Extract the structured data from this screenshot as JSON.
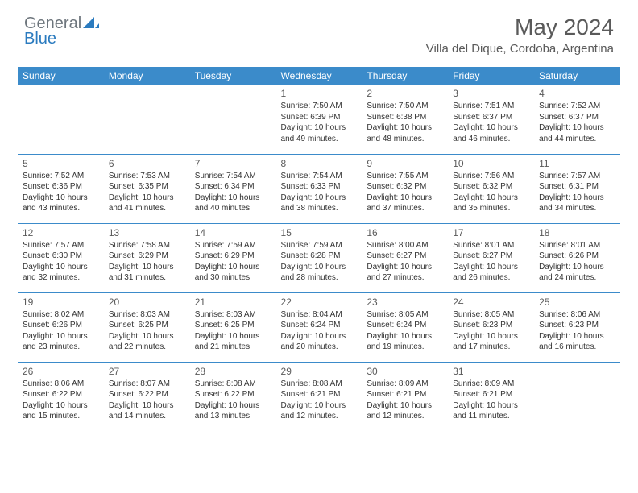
{
  "logo": {
    "word1": "General",
    "word2": "Blue"
  },
  "title": "May 2024",
  "location": "Villa del Dique, Cordoba, Argentina",
  "header_bg": "#3b8bca",
  "days_of_week": [
    "Sunday",
    "Monday",
    "Tuesday",
    "Wednesday",
    "Thursday",
    "Friday",
    "Saturday"
  ],
  "weeks": [
    [
      null,
      null,
      null,
      {
        "n": "1",
        "sr": "7:50 AM",
        "ss": "6:39 PM",
        "dl": "10 hours and 49 minutes."
      },
      {
        "n": "2",
        "sr": "7:50 AM",
        "ss": "6:38 PM",
        "dl": "10 hours and 48 minutes."
      },
      {
        "n": "3",
        "sr": "7:51 AM",
        "ss": "6:37 PM",
        "dl": "10 hours and 46 minutes."
      },
      {
        "n": "4",
        "sr": "7:52 AM",
        "ss": "6:37 PM",
        "dl": "10 hours and 44 minutes."
      }
    ],
    [
      {
        "n": "5",
        "sr": "7:52 AM",
        "ss": "6:36 PM",
        "dl": "10 hours and 43 minutes."
      },
      {
        "n": "6",
        "sr": "7:53 AM",
        "ss": "6:35 PM",
        "dl": "10 hours and 41 minutes."
      },
      {
        "n": "7",
        "sr": "7:54 AM",
        "ss": "6:34 PM",
        "dl": "10 hours and 40 minutes."
      },
      {
        "n": "8",
        "sr": "7:54 AM",
        "ss": "6:33 PM",
        "dl": "10 hours and 38 minutes."
      },
      {
        "n": "9",
        "sr": "7:55 AM",
        "ss": "6:32 PM",
        "dl": "10 hours and 37 minutes."
      },
      {
        "n": "10",
        "sr": "7:56 AM",
        "ss": "6:32 PM",
        "dl": "10 hours and 35 minutes."
      },
      {
        "n": "11",
        "sr": "7:57 AM",
        "ss": "6:31 PM",
        "dl": "10 hours and 34 minutes."
      }
    ],
    [
      {
        "n": "12",
        "sr": "7:57 AM",
        "ss": "6:30 PM",
        "dl": "10 hours and 32 minutes."
      },
      {
        "n": "13",
        "sr": "7:58 AM",
        "ss": "6:29 PM",
        "dl": "10 hours and 31 minutes."
      },
      {
        "n": "14",
        "sr": "7:59 AM",
        "ss": "6:29 PM",
        "dl": "10 hours and 30 minutes."
      },
      {
        "n": "15",
        "sr": "7:59 AM",
        "ss": "6:28 PM",
        "dl": "10 hours and 28 minutes."
      },
      {
        "n": "16",
        "sr": "8:00 AM",
        "ss": "6:27 PM",
        "dl": "10 hours and 27 minutes."
      },
      {
        "n": "17",
        "sr": "8:01 AM",
        "ss": "6:27 PM",
        "dl": "10 hours and 26 minutes."
      },
      {
        "n": "18",
        "sr": "8:01 AM",
        "ss": "6:26 PM",
        "dl": "10 hours and 24 minutes."
      }
    ],
    [
      {
        "n": "19",
        "sr": "8:02 AM",
        "ss": "6:26 PM",
        "dl": "10 hours and 23 minutes."
      },
      {
        "n": "20",
        "sr": "8:03 AM",
        "ss": "6:25 PM",
        "dl": "10 hours and 22 minutes."
      },
      {
        "n": "21",
        "sr": "8:03 AM",
        "ss": "6:25 PM",
        "dl": "10 hours and 21 minutes."
      },
      {
        "n": "22",
        "sr": "8:04 AM",
        "ss": "6:24 PM",
        "dl": "10 hours and 20 minutes."
      },
      {
        "n": "23",
        "sr": "8:05 AM",
        "ss": "6:24 PM",
        "dl": "10 hours and 19 minutes."
      },
      {
        "n": "24",
        "sr": "8:05 AM",
        "ss": "6:23 PM",
        "dl": "10 hours and 17 minutes."
      },
      {
        "n": "25",
        "sr": "8:06 AM",
        "ss": "6:23 PM",
        "dl": "10 hours and 16 minutes."
      }
    ],
    [
      {
        "n": "26",
        "sr": "8:06 AM",
        "ss": "6:22 PM",
        "dl": "10 hours and 15 minutes."
      },
      {
        "n": "27",
        "sr": "8:07 AM",
        "ss": "6:22 PM",
        "dl": "10 hours and 14 minutes."
      },
      {
        "n": "28",
        "sr": "8:08 AM",
        "ss": "6:22 PM",
        "dl": "10 hours and 13 minutes."
      },
      {
        "n": "29",
        "sr": "8:08 AM",
        "ss": "6:21 PM",
        "dl": "10 hours and 12 minutes."
      },
      {
        "n": "30",
        "sr": "8:09 AM",
        "ss": "6:21 PM",
        "dl": "10 hours and 12 minutes."
      },
      {
        "n": "31",
        "sr": "8:09 AM",
        "ss": "6:21 PM",
        "dl": "10 hours and 11 minutes."
      },
      null
    ]
  ],
  "labels": {
    "sunrise": "Sunrise:",
    "sunset": "Sunset:",
    "daylight": "Daylight:"
  }
}
